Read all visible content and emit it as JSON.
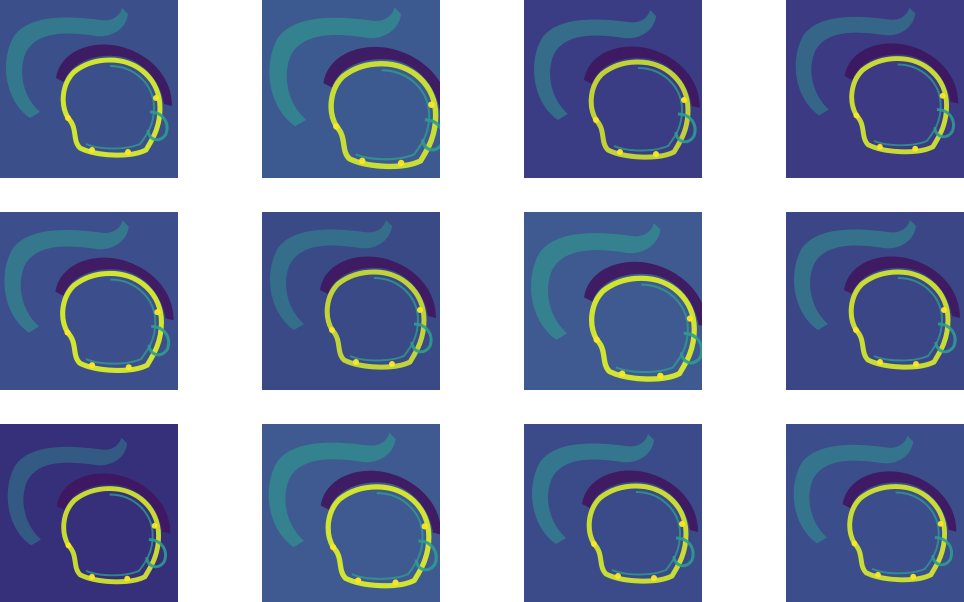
{
  "figure": {
    "rows": 3,
    "columns": 4,
    "colormap": {
      "name": "viridis",
      "background_color": "#3b4f8b",
      "dark_color": "#3f165f",
      "mid_color": "#2f9b8f",
      "bright_color": "#d8ec2b",
      "peak_color": "#fde725"
    },
    "panels": [
      {
        "row": 0,
        "col": 0,
        "background": "#3b4f8b",
        "shell_intensity": 0.55,
        "ring_intensity": 0.95
      },
      {
        "row": 0,
        "col": 1,
        "background": "#3d5a90",
        "shell_intensity": 0.6,
        "ring_intensity": 0.9
      },
      {
        "row": 0,
        "col": 2,
        "background": "#3a3d83",
        "shell_intensity": 0.5,
        "ring_intensity": 0.85
      },
      {
        "row": 0,
        "col": 3,
        "background": "#3b3a82",
        "shell_intensity": 0.45,
        "ring_intensity": 0.9
      },
      {
        "row": 1,
        "col": 0,
        "background": "#3c4f8c",
        "shell_intensity": 0.55,
        "ring_intensity": 0.95
      },
      {
        "row": 1,
        "col": 1,
        "background": "#3a4a87",
        "shell_intensity": 0.45,
        "ring_intensity": 0.85
      },
      {
        "row": 1,
        "col": 2,
        "background": "#3f5a90",
        "shell_intensity": 0.6,
        "ring_intensity": 0.95
      },
      {
        "row": 1,
        "col": 3,
        "background": "#3b4687",
        "shell_intensity": 0.5,
        "ring_intensity": 0.9
      },
      {
        "row": 2,
        "col": 0,
        "background": "#36307a",
        "shell_intensity": 0.4,
        "ring_intensity": 0.9
      },
      {
        "row": 2,
        "col": 1,
        "background": "#3e5a90",
        "shell_intensity": 0.6,
        "ring_intensity": 0.95
      },
      {
        "row": 2,
        "col": 2,
        "background": "#3b4a89",
        "shell_intensity": 0.55,
        "ring_intensity": 0.9
      },
      {
        "row": 2,
        "col": 3,
        "background": "#3b4d8a",
        "shell_intensity": 0.5,
        "ring_intensity": 0.9
      }
    ]
  }
}
